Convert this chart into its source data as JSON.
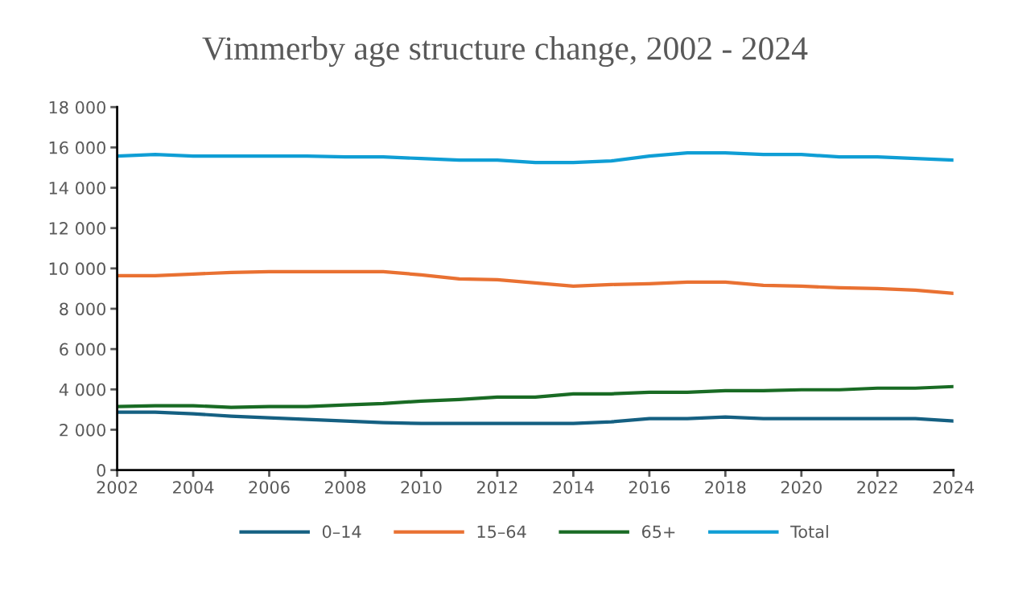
{
  "chart_data": {
    "type": "line",
    "title": "Vimmerby age structure change, 2002 - 2024",
    "x": [
      2002,
      2003,
      2004,
      2005,
      2006,
      2007,
      2008,
      2009,
      2010,
      2011,
      2012,
      2013,
      2014,
      2015,
      2016,
      2017,
      2018,
      2019,
      2020,
      2021,
      2022,
      2023,
      2024
    ],
    "series": [
      {
        "name": "0–14",
        "color": "#156082",
        "values": [
          2870,
          2870,
          2790,
          2670,
          2590,
          2510,
          2430,
          2350,
          2310,
          2310,
          2310,
          2310,
          2310,
          2390,
          2550,
          2550,
          2630,
          2550,
          2550,
          2550,
          2550,
          2550,
          2430
        ]
      },
      {
        "name": "15–64",
        "color": "#e97132",
        "values": [
          9640,
          9640,
          9720,
          9800,
          9840,
          9840,
          9840,
          9840,
          9680,
          9480,
          9440,
          9280,
          9120,
          9200,
          9240,
          9320,
          9320,
          9160,
          9120,
          9040,
          9000,
          8920,
          8760
        ]
      },
      {
        "name": "65+",
        "color": "#196b24",
        "values": [
          3150,
          3190,
          3190,
          3110,
          3150,
          3150,
          3230,
          3300,
          3420,
          3500,
          3620,
          3620,
          3780,
          3780,
          3860,
          3860,
          3940,
          3940,
          3980,
          3980,
          4060,
          4060,
          4140
        ]
      },
      {
        "name": "Total",
        "color": "#0f9ed5",
        "values": [
          15570,
          15650,
          15570,
          15570,
          15570,
          15570,
          15530,
          15530,
          15450,
          15370,
          15370,
          15250,
          15250,
          15330,
          15570,
          15730,
          15730,
          15650,
          15650,
          15530,
          15530,
          15450,
          15370
        ]
      }
    ],
    "xlim": [
      2002,
      2024
    ],
    "xticks": [
      2002,
      2004,
      2006,
      2008,
      2010,
      2012,
      2014,
      2016,
      2018,
      2020,
      2022,
      2024
    ],
    "ylim": [
      0,
      18000
    ],
    "yticks": [
      0,
      {
        "value": 2000,
        "label": "2 000"
      },
      {
        "value": 4000,
        "label": "4 000"
      },
      {
        "value": 6000,
        "label": "6 000"
      },
      {
        "value": 8000,
        "label": "8 000"
      },
      {
        "value": 10000,
        "label": "10 000"
      },
      {
        "value": 12000,
        "label": "12 000"
      },
      {
        "value": 14000,
        "label": "14 000"
      },
      {
        "value": 16000,
        "label": "16 000"
      },
      {
        "value": 18000,
        "label": "18 000"
      }
    ],
    "grid": false,
    "legend": "bottom",
    "marker": "none",
    "line_style": "solid"
  }
}
